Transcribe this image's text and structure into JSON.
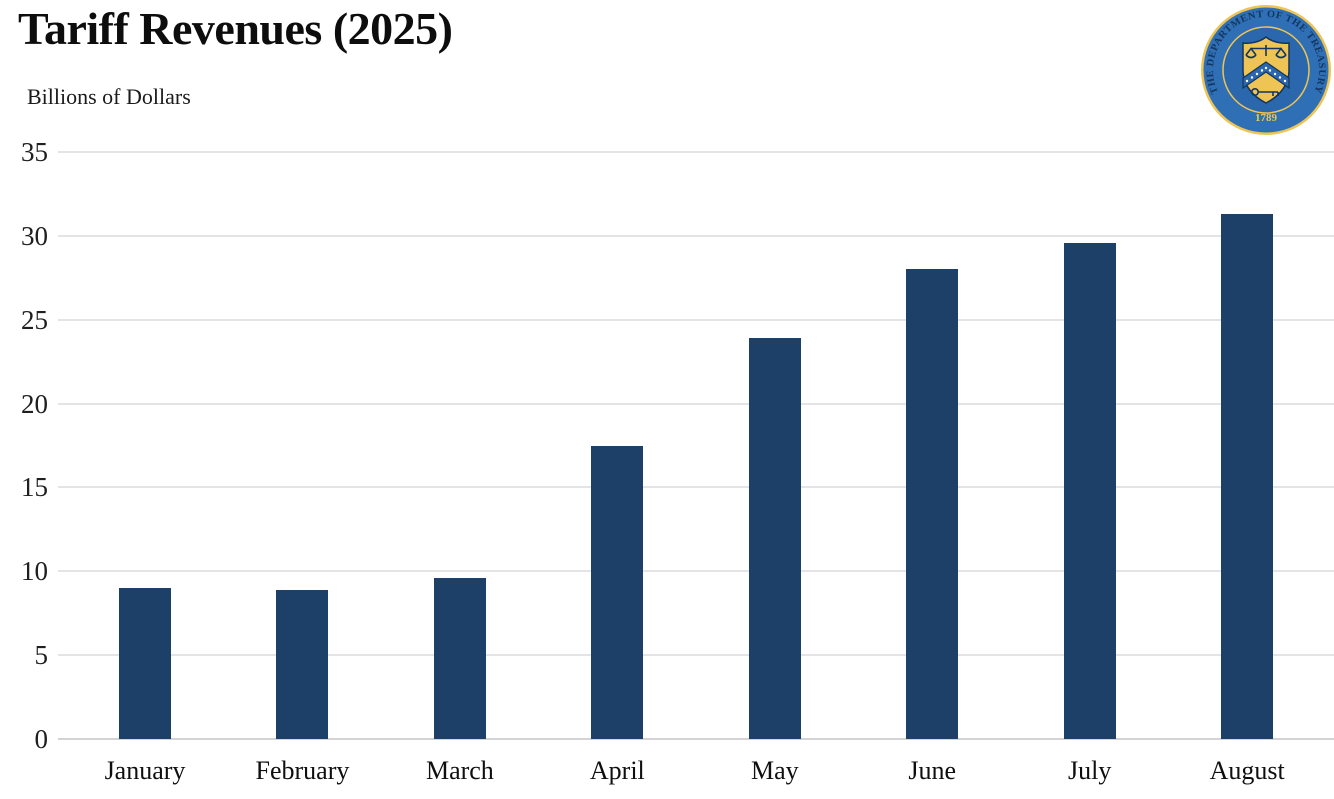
{
  "header": {
    "title": "Tariff Revenues (2025)",
    "subtitle": "Billions of Dollars"
  },
  "seal": {
    "ring_text": "THE DEPARTMENT OF THE TREASURY",
    "year": "1789",
    "colors": {
      "ring_blue": "#2f6fb5",
      "inner_blue": "#2a67ad",
      "gold": "#eec455",
      "navy": "#14355f"
    }
  },
  "chart_data": {
    "type": "bar",
    "title": "Tariff Revenues (2025)",
    "ylabel": "Billions of Dollars",
    "xlabel": "",
    "categories": [
      "January",
      "February",
      "March",
      "April",
      "May",
      "June",
      "July",
      "August"
    ],
    "values": [
      9.0,
      8.9,
      9.6,
      17.5,
      23.9,
      28.0,
      29.6,
      31.3
    ],
    "yticks": [
      0,
      5,
      10,
      15,
      20,
      25,
      30,
      35
    ],
    "ylim": [
      0,
      35
    ],
    "grid": "horizontal",
    "legend": "none",
    "bar_color": "#1c4067",
    "gridline_color": "#e4e4e4",
    "baseline_color": "#d4d4d4",
    "axis_text_color": "#1f1f1f"
  }
}
